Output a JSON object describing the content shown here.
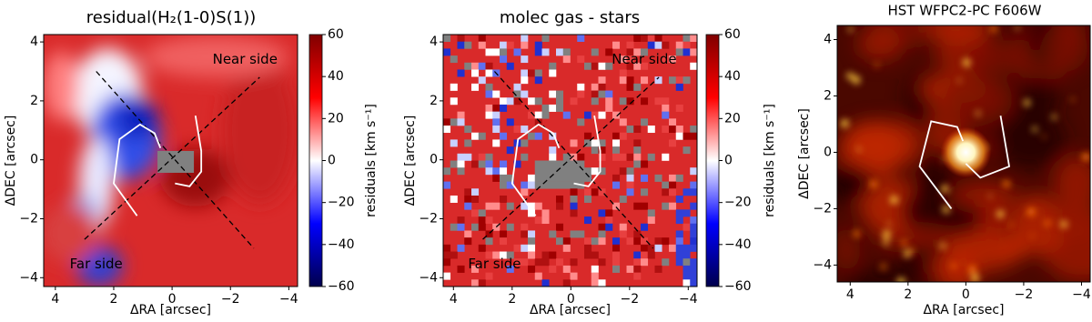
{
  "chart_data": [
    {
      "type": "heatmap",
      "title": "residual(H₂(1-0)S(1))",
      "xlabel": "ΔRA [arcsec]",
      "ylabel": "ΔDEC [arcsec]",
      "xlim": [
        4.4,
        -4.3
      ],
      "ylim": [
        -4.3,
        4.25
      ],
      "xticks": [
        4,
        2,
        0,
        {
          "value": -2,
          "label": "−2"
        },
        {
          "value": -4,
          "label": "−4"
        }
      ],
      "yticks": [
        {
          "value": -4,
          "label": "−4"
        },
        {
          "value": -2,
          "label": "−2"
        },
        0,
        2,
        4
      ],
      "colorbar": {
        "label": "residuals [km s⁻¹]",
        "lim": [
          -60,
          60
        ],
        "ticks": [
          {
            "value": -60,
            "label": "−60"
          },
          {
            "value": -40,
            "label": "−40"
          },
          {
            "value": -20,
            "label": "−20"
          },
          0,
          20,
          40,
          60
        ]
      },
      "annotations": [
        "Near side",
        "Far side"
      ]
    },
    {
      "type": "heatmap",
      "title": "molec gas - stars",
      "xlabel": "ΔRA [arcsec]",
      "ylabel": "ΔDEC [arcsec]",
      "xlim": [
        4.35,
        -4.3
      ],
      "ylim": [
        -4.3,
        4.25
      ],
      "xticks": [
        4,
        2,
        0,
        {
          "value": -2,
          "label": "−2"
        },
        {
          "value": -4,
          "label": "−4"
        }
      ],
      "yticks": [
        {
          "value": -4,
          "label": "−4"
        },
        {
          "value": -2,
          "label": "−2"
        },
        0,
        2,
        4
      ],
      "colorbar": {
        "label": "residuals [km s⁻¹]",
        "lim": [
          -60,
          60
        ],
        "ticks": [
          {
            "value": -60,
            "label": "−60"
          },
          {
            "value": -40,
            "label": "−40"
          },
          {
            "value": -20,
            "label": "−20"
          },
          0,
          20,
          40,
          60
        ]
      },
      "annotations": [
        "Near side",
        "Far side"
      ]
    },
    {
      "type": "image",
      "title": "HST WFPC2-PC F606W",
      "xlabel": "ΔRA [arcsec]",
      "ylabel": "ΔDEC [arcsec]",
      "xlim": [
        4.45,
        -4.3
      ],
      "ylim": [
        -4.6,
        4.5
      ],
      "xticks": [
        4,
        2,
        0,
        {
          "value": -2,
          "label": "−2"
        },
        {
          "value": -4,
          "label": "−4"
        }
      ],
      "yticks": [
        {
          "value": -4,
          "label": "−4"
        },
        {
          "value": -2,
          "label": "−2"
        },
        0,
        2,
        4
      ]
    }
  ]
}
